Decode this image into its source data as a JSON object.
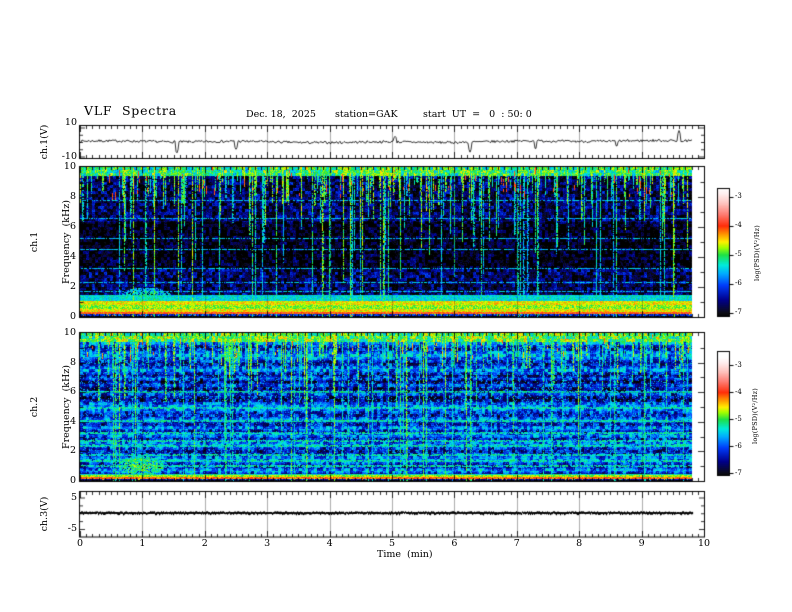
{
  "header": {
    "title": "VLF  Spectra",
    "date": "Dec. 18,  2025",
    "station": "station=GAK",
    "start_ut": "start  UT  =   0  : 50: 0"
  },
  "panels": {
    "ch1": {
      "ylabel": "ch.1(V)",
      "yticks": [
        "10",
        "-10"
      ]
    },
    "spec1": {
      "ylabel1": "ch.1",
      "ylabel2": "Frequency  (kHz)",
      "yticks": [
        "10",
        "8",
        "6",
        "4",
        "2",
        "0"
      ]
    },
    "spec2": {
      "ylabel1": "ch.2",
      "ylabel2": "Frequency  (kHz)",
      "yticks": [
        "10",
        "8",
        "6",
        "4",
        "2",
        "0"
      ]
    },
    "ch3": {
      "ylabel": "ch.3(V)",
      "yticks": [
        "5",
        "-5"
      ]
    }
  },
  "xaxis": {
    "label": "Time  (min)",
    "ticks": [
      "0",
      "1",
      "2",
      "3",
      "4",
      "5",
      "6",
      "7",
      "8",
      "9",
      "10"
    ]
  },
  "colorbar": {
    "label": "log(PSD)(V²/Hz)",
    "ticks": [
      "-3",
      "-4",
      "-5",
      "-6",
      "-7"
    ]
  },
  "colors": {
    "background": "#ffffff",
    "ink": "#000000",
    "grid_gray": "#888888"
  },
  "chart_data": [
    {
      "type": "line",
      "name": "ch1_waveform",
      "ylabel": "ch.1(V)",
      "xlim": [
        0,
        10
      ],
      "ylim": [
        -10,
        10
      ],
      "data_extent_min": [
        0,
        9.8
      ],
      "baseline_v": 0,
      "noise_amp_v": 1.2,
      "spikes": [
        {
          "t": 1.55,
          "v": -8
        },
        {
          "t": 2.5,
          "v": -5
        },
        {
          "t": 5.05,
          "v": 4
        },
        {
          "t": 6.25,
          "v": -7
        },
        {
          "t": 7.3,
          "v": -5
        },
        {
          "t": 8.6,
          "v": -3
        },
        {
          "t": 9.6,
          "v": 8
        }
      ]
    },
    {
      "type": "heatmap",
      "name": "ch1_spectrogram",
      "ylabel": "ch.1 Frequency (kHz)",
      "xlim": [
        0,
        10
      ],
      "ylim": [
        0,
        10
      ],
      "clim": [
        -7,
        -3
      ],
      "colormap": "black-blue-cyan-green-yellow-red-white",
      "features": {
        "bg": -6.75,
        "rowMod": 0,
        "darkBand": [
          3.2,
          6.4,
          0.35
        ],
        "top": {
          "f0": 9.45,
          "lvl": -5.15
        },
        "bands": [
          {
            "f0": 0,
            "f1": 0.08,
            "lvl": -7.1
          },
          {
            "f0": 0.08,
            "f1": 0.25,
            "lvl": -6.2,
            "colorSpk": true
          },
          {
            "f0": 0.25,
            "f1": 0.4,
            "lvl": -4.05
          },
          {
            "f0": 0.4,
            "f1": 0.55,
            "lvl": -4.55
          },
          {
            "f0": 0.55,
            "f1": 0.8,
            "lvl": -4.8
          },
          {
            "f0": 0.8,
            "f1": 1.1,
            "lvl": -4.55
          },
          {
            "f0": 1.1,
            "f1": 1.5,
            "lvl": -5.4
          }
        ],
        "hlines": [
          1.75,
          2.35,
          3.25,
          4.55,
          5.3,
          6.6,
          7.8
        ],
        "hlineLvl": -5.55,
        "hlineTh": 1,
        "blob": {
          "t0": 0.65,
          "t1": 1.45,
          "f0": 0.9,
          "f1": 2.0,
          "lvl": -5.3
        },
        "streaks": {
          "count": 300,
          "lvlMin": -5.45,
          "lvlMax": -4.65,
          "fullProb": 0.1
        },
        "flecks": {
          "count": 70,
          "f0": 8.2,
          "f1": 10,
          "lvl": -4.0
        },
        "speckleProb": 0
      }
    },
    {
      "type": "heatmap",
      "name": "ch2_spectrogram",
      "ylabel": "ch.2 Frequency (kHz)",
      "xlim": [
        0,
        10
      ],
      "ylim": [
        0,
        10
      ],
      "clim": [
        -7,
        -3
      ],
      "colormap": "black-blue-cyan-green-yellow-red-white",
      "features": {
        "bg": -6.1,
        "rowMod": 0.3,
        "darkBand": [
          5.4,
          7.2,
          0.3
        ],
        "top": {
          "f0": 9.45,
          "lvl": -5.0
        },
        "bands": [
          {
            "f0": 0,
            "f1": 0.07,
            "lvl": -7.1
          },
          {
            "f0": 0.07,
            "f1": 0.18,
            "lvl": -6.5,
            "colorSpk": true
          },
          {
            "f0": 0.18,
            "f1": 0.28,
            "lvl": -4.15
          },
          {
            "f0": 0.28,
            "f1": 0.42,
            "lvl": -4.75
          },
          {
            "f0": 0.42,
            "f1": 0.52,
            "lvl": -5.3
          }
        ],
        "hlines": [
          1.05,
          1.45,
          1.8,
          2.45,
          2.75,
          3.3,
          4.15,
          5.0,
          6.1
        ],
        "hlineLvl": -5.25,
        "hlineTh": 2,
        "blob": {
          "t0": 0.6,
          "t1": 1.35,
          "f0": 0.4,
          "f1": 1.7,
          "lvl": -5.0
        },
        "streaks": {
          "count": 260,
          "lvlMin": -5.35,
          "lvlMax": -4.7,
          "fullProb": 0.15
        },
        "flecks": {
          "count": 55,
          "f0": 8.4,
          "f1": 10,
          "lvl": -4.3
        },
        "speckleProb": 0.09
      }
    },
    {
      "type": "line",
      "name": "ch3_waveform",
      "ylabel": "ch.3(V)",
      "xlim": [
        0,
        10
      ],
      "ylim": [
        -5,
        5
      ],
      "data_extent_min": [
        0,
        9.8
      ],
      "baseline_v": 0,
      "noise_amp_v": 0.3,
      "spikes": []
    }
  ]
}
